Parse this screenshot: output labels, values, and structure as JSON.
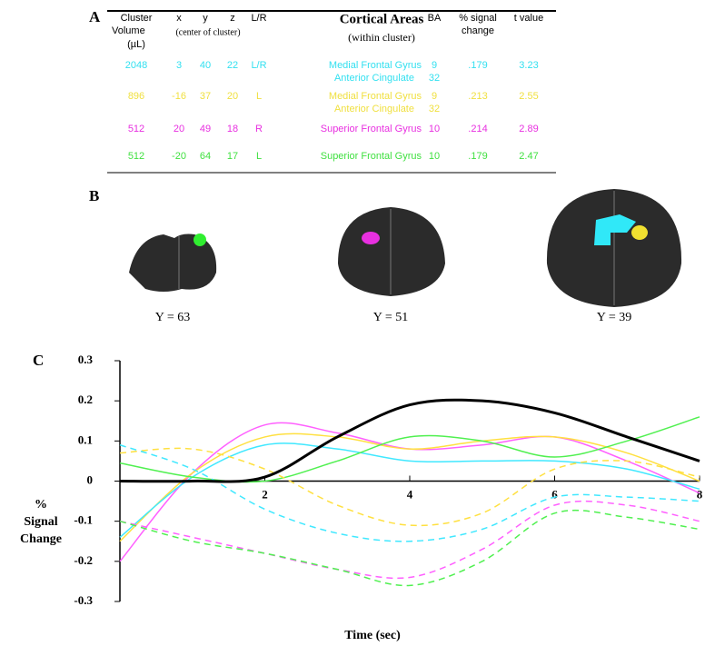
{
  "panel_labels": [
    "A",
    "B",
    "C"
  ],
  "table": {
    "header": [
      {
        "lines": [
          "Cluster",
          "Volume",
          "(µL)"
        ]
      },
      {
        "lines": [
          "x"
        ]
      },
      {
        "lines": [
          "y"
        ]
      },
      {
        "lines": [
          "z"
        ]
      },
      {
        "lines": [
          "L/R"
        ]
      },
      {
        "lines": [
          "Cortical Areas",
          "(within cluster)"
        ]
      },
      {
        "lines": [
          "BA"
        ]
      },
      {
        "lines": [
          "% signal",
          "change"
        ]
      },
      {
        "lines": [
          "t value"
        ]
      }
    ],
    "xyz_note": "(center of cluster)",
    "rows": [
      {
        "color": "#33e0f0",
        "cells": [
          "2048",
          "3",
          "40",
          "22",
          "L/R",
          "Medial Frontal Gyrus",
          "9",
          ".179",
          "3.23"
        ],
        "sub": [
          "Anterior Cingulate",
          "32"
        ]
      },
      {
        "color": "#f0e040",
        "cells": [
          "896",
          "-16",
          "37",
          "20",
          "L",
          "Medial Frontal Gyrus",
          "9",
          ".213",
          "2.55"
        ],
        "sub": [
          "Anterior Cingulate",
          "32"
        ]
      },
      {
        "color": "#e830e0",
        "cells": [
          "512",
          "20",
          "49",
          "18",
          "R",
          "Superior Frontal Gyrus",
          "10",
          ".214",
          "2.89"
        ]
      },
      {
        "color": "#40e040",
        "cells": [
          "512",
          "-20",
          "64",
          "17",
          "L",
          "Superior Frontal Gyrus",
          "10",
          ".179",
          "2.47"
        ]
      }
    ]
  },
  "brain_slices": [
    {
      "label": "Y = 63"
    },
    {
      "label": "Y = 51"
    },
    {
      "label": "Y = 39"
    }
  ],
  "chart_data": {
    "type": "line",
    "y_label": [
      "%",
      "Signal",
      "Change"
    ],
    "x_label": "Time (sec)",
    "x": [
      0,
      1,
      2,
      3,
      4,
      5,
      6,
      7,
      8
    ],
    "xlim": [
      0,
      8
    ],
    "ylim": [
      -0.3,
      0.3
    ],
    "xticks": [
      2,
      4,
      6,
      8
    ],
    "yticks": [
      -0.3,
      -0.2,
      -0.1,
      0,
      0.1,
      0.2,
      0.3
    ],
    "series": [
      {
        "color": "#ff60ff",
        "dashed": false,
        "values": [
          -0.2,
          0.02,
          0.14,
          0.12,
          0.08,
          0.09,
          0.11,
          0.05,
          -0.03
        ]
      },
      {
        "color": "#ffe040",
        "dashed": false,
        "values": [
          -0.15,
          0.02,
          0.11,
          0.11,
          0.08,
          0.1,
          0.11,
          0.07,
          0
        ]
      },
      {
        "color": "#40e8ff",
        "dashed": false,
        "values": [
          -0.14,
          0.01,
          0.09,
          0.08,
          0.05,
          0.05,
          0.05,
          0.03,
          -0.02
        ]
      },
      {
        "color": "#50f050",
        "dashed": false,
        "values": [
          0.045,
          0.01,
          0,
          0.05,
          0.11,
          0.1,
          0.06,
          0.1,
          0.16
        ]
      },
      {
        "color": "#ffe040",
        "dashed": true,
        "values": [
          0.07,
          0.08,
          0.03,
          -0.06,
          -0.11,
          -0.08,
          0.03,
          0.05,
          0.01
        ]
      },
      {
        "color": "#40e8ff",
        "dashed": true,
        "values": [
          0.09,
          0.03,
          -0.07,
          -0.13,
          -0.15,
          -0.12,
          -0.04,
          -0.04,
          -0.05
        ]
      },
      {
        "color": "#ff60ff",
        "dashed": true,
        "values": [
          -0.1,
          -0.14,
          -0.18,
          -0.22,
          -0.24,
          -0.17,
          -0.06,
          -0.06,
          -0.1
        ]
      },
      {
        "color": "#50f050",
        "dashed": true,
        "values": [
          -0.1,
          -0.15,
          -0.18,
          -0.22,
          -0.26,
          -0.2,
          -0.08,
          -0.09,
          -0.12
        ]
      },
      {
        "color": "#000000",
        "dashed": false,
        "width": 3,
        "values": [
          0,
          0,
          0.01,
          0.11,
          0.19,
          0.2,
          0.17,
          0.11,
          0.05
        ]
      }
    ]
  }
}
